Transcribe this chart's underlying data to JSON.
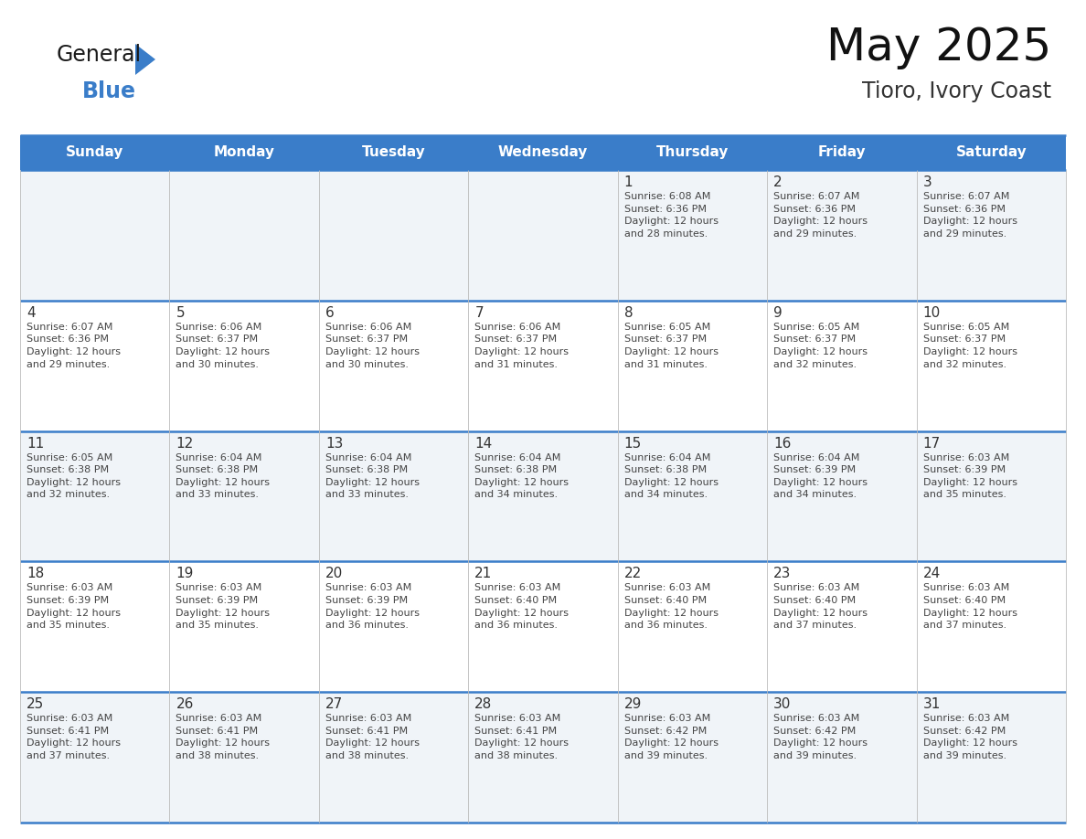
{
  "title": "May 2025",
  "subtitle": "Tioro, Ivory Coast",
  "header_color": "#3A7DC9",
  "header_text_color": "#FFFFFF",
  "cell_bg_week1": "#F0F4F8",
  "cell_bg_week2": "#FFFFFF",
  "cell_bg_week3": "#F0F4F8",
  "cell_bg_week4": "#FFFFFF",
  "cell_bg_week5": "#F0F4F8",
  "border_color": "#3A7DC9",
  "grid_line_color": "#BBBBBB",
  "text_color": "#333333",
  "info_text_color": "#444444",
  "day_headers": [
    "Sunday",
    "Monday",
    "Tuesday",
    "Wednesday",
    "Thursday",
    "Friday",
    "Saturday"
  ],
  "weeks": [
    [
      {
        "day": "",
        "info": ""
      },
      {
        "day": "",
        "info": ""
      },
      {
        "day": "",
        "info": ""
      },
      {
        "day": "",
        "info": ""
      },
      {
        "day": "1",
        "info": "Sunrise: 6:08 AM\nSunset: 6:36 PM\nDaylight: 12 hours\nand 28 minutes."
      },
      {
        "day": "2",
        "info": "Sunrise: 6:07 AM\nSunset: 6:36 PM\nDaylight: 12 hours\nand 29 minutes."
      },
      {
        "day": "3",
        "info": "Sunrise: 6:07 AM\nSunset: 6:36 PM\nDaylight: 12 hours\nand 29 minutes."
      }
    ],
    [
      {
        "day": "4",
        "info": "Sunrise: 6:07 AM\nSunset: 6:36 PM\nDaylight: 12 hours\nand 29 minutes."
      },
      {
        "day": "5",
        "info": "Sunrise: 6:06 AM\nSunset: 6:37 PM\nDaylight: 12 hours\nand 30 minutes."
      },
      {
        "day": "6",
        "info": "Sunrise: 6:06 AM\nSunset: 6:37 PM\nDaylight: 12 hours\nand 30 minutes."
      },
      {
        "day": "7",
        "info": "Sunrise: 6:06 AM\nSunset: 6:37 PM\nDaylight: 12 hours\nand 31 minutes."
      },
      {
        "day": "8",
        "info": "Sunrise: 6:05 AM\nSunset: 6:37 PM\nDaylight: 12 hours\nand 31 minutes."
      },
      {
        "day": "9",
        "info": "Sunrise: 6:05 AM\nSunset: 6:37 PM\nDaylight: 12 hours\nand 32 minutes."
      },
      {
        "day": "10",
        "info": "Sunrise: 6:05 AM\nSunset: 6:37 PM\nDaylight: 12 hours\nand 32 minutes."
      }
    ],
    [
      {
        "day": "11",
        "info": "Sunrise: 6:05 AM\nSunset: 6:38 PM\nDaylight: 12 hours\nand 32 minutes."
      },
      {
        "day": "12",
        "info": "Sunrise: 6:04 AM\nSunset: 6:38 PM\nDaylight: 12 hours\nand 33 minutes."
      },
      {
        "day": "13",
        "info": "Sunrise: 6:04 AM\nSunset: 6:38 PM\nDaylight: 12 hours\nand 33 minutes."
      },
      {
        "day": "14",
        "info": "Sunrise: 6:04 AM\nSunset: 6:38 PM\nDaylight: 12 hours\nand 34 minutes."
      },
      {
        "day": "15",
        "info": "Sunrise: 6:04 AM\nSunset: 6:38 PM\nDaylight: 12 hours\nand 34 minutes."
      },
      {
        "day": "16",
        "info": "Sunrise: 6:04 AM\nSunset: 6:39 PM\nDaylight: 12 hours\nand 34 minutes."
      },
      {
        "day": "17",
        "info": "Sunrise: 6:03 AM\nSunset: 6:39 PM\nDaylight: 12 hours\nand 35 minutes."
      }
    ],
    [
      {
        "day": "18",
        "info": "Sunrise: 6:03 AM\nSunset: 6:39 PM\nDaylight: 12 hours\nand 35 minutes."
      },
      {
        "day": "19",
        "info": "Sunrise: 6:03 AM\nSunset: 6:39 PM\nDaylight: 12 hours\nand 35 minutes."
      },
      {
        "day": "20",
        "info": "Sunrise: 6:03 AM\nSunset: 6:39 PM\nDaylight: 12 hours\nand 36 minutes."
      },
      {
        "day": "21",
        "info": "Sunrise: 6:03 AM\nSunset: 6:40 PM\nDaylight: 12 hours\nand 36 minutes."
      },
      {
        "day": "22",
        "info": "Sunrise: 6:03 AM\nSunset: 6:40 PM\nDaylight: 12 hours\nand 36 minutes."
      },
      {
        "day": "23",
        "info": "Sunrise: 6:03 AM\nSunset: 6:40 PM\nDaylight: 12 hours\nand 37 minutes."
      },
      {
        "day": "24",
        "info": "Sunrise: 6:03 AM\nSunset: 6:40 PM\nDaylight: 12 hours\nand 37 minutes."
      }
    ],
    [
      {
        "day": "25",
        "info": "Sunrise: 6:03 AM\nSunset: 6:41 PM\nDaylight: 12 hours\nand 37 minutes."
      },
      {
        "day": "26",
        "info": "Sunrise: 6:03 AM\nSunset: 6:41 PM\nDaylight: 12 hours\nand 38 minutes."
      },
      {
        "day": "27",
        "info": "Sunrise: 6:03 AM\nSunset: 6:41 PM\nDaylight: 12 hours\nand 38 minutes."
      },
      {
        "day": "28",
        "info": "Sunrise: 6:03 AM\nSunset: 6:41 PM\nDaylight: 12 hours\nand 38 minutes."
      },
      {
        "day": "29",
        "info": "Sunrise: 6:03 AM\nSunset: 6:42 PM\nDaylight: 12 hours\nand 39 minutes."
      },
      {
        "day": "30",
        "info": "Sunrise: 6:03 AM\nSunset: 6:42 PM\nDaylight: 12 hours\nand 39 minutes."
      },
      {
        "day": "31",
        "info": "Sunrise: 6:03 AM\nSunset: 6:42 PM\nDaylight: 12 hours\nand 39 minutes."
      }
    ]
  ],
  "logo_color_general": "#1a1a1a",
  "logo_color_blue": "#3A7DC9",
  "fig_width": 11.88,
  "fig_height": 9.18,
  "dpi": 100
}
